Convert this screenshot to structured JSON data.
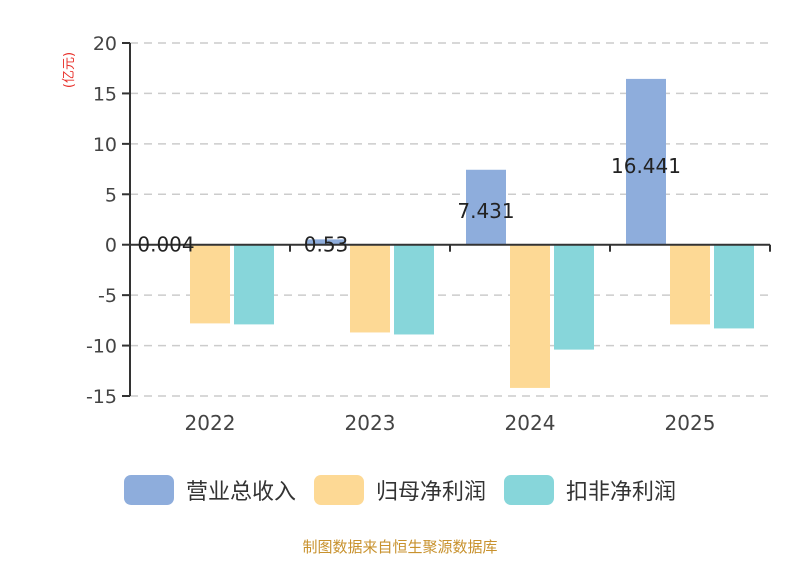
{
  "chart_data": {
    "type": "bar",
    "title": "",
    "xlabel": "",
    "ylabel": "(亿元)",
    "ylim": [
      -15,
      20
    ],
    "yticks": [
      20,
      15,
      10,
      5,
      0,
      -5,
      -10,
      -15
    ],
    "grid": true,
    "legend_position": "bottom",
    "categories": [
      "2022",
      "2023",
      "2024",
      "2025"
    ],
    "series": [
      {
        "name": "营业总收入",
        "color": "#8eaddc",
        "values": [
          0.004,
          0.53,
          7.431,
          16.441
        ],
        "labels": [
          "0.004",
          "0.53",
          "7.431",
          "16.441"
        ]
      },
      {
        "name": "归母净利润",
        "color": "#fdd995",
        "values": [
          -7.8,
          -8.7,
          -14.2,
          -7.9
        ]
      },
      {
        "name": "扣非净利润",
        "color": "#87d6da",
        "values": [
          -7.9,
          -8.9,
          -10.4,
          -8.3
        ]
      }
    ]
  },
  "source": "制图数据来自恒生聚源数据库"
}
